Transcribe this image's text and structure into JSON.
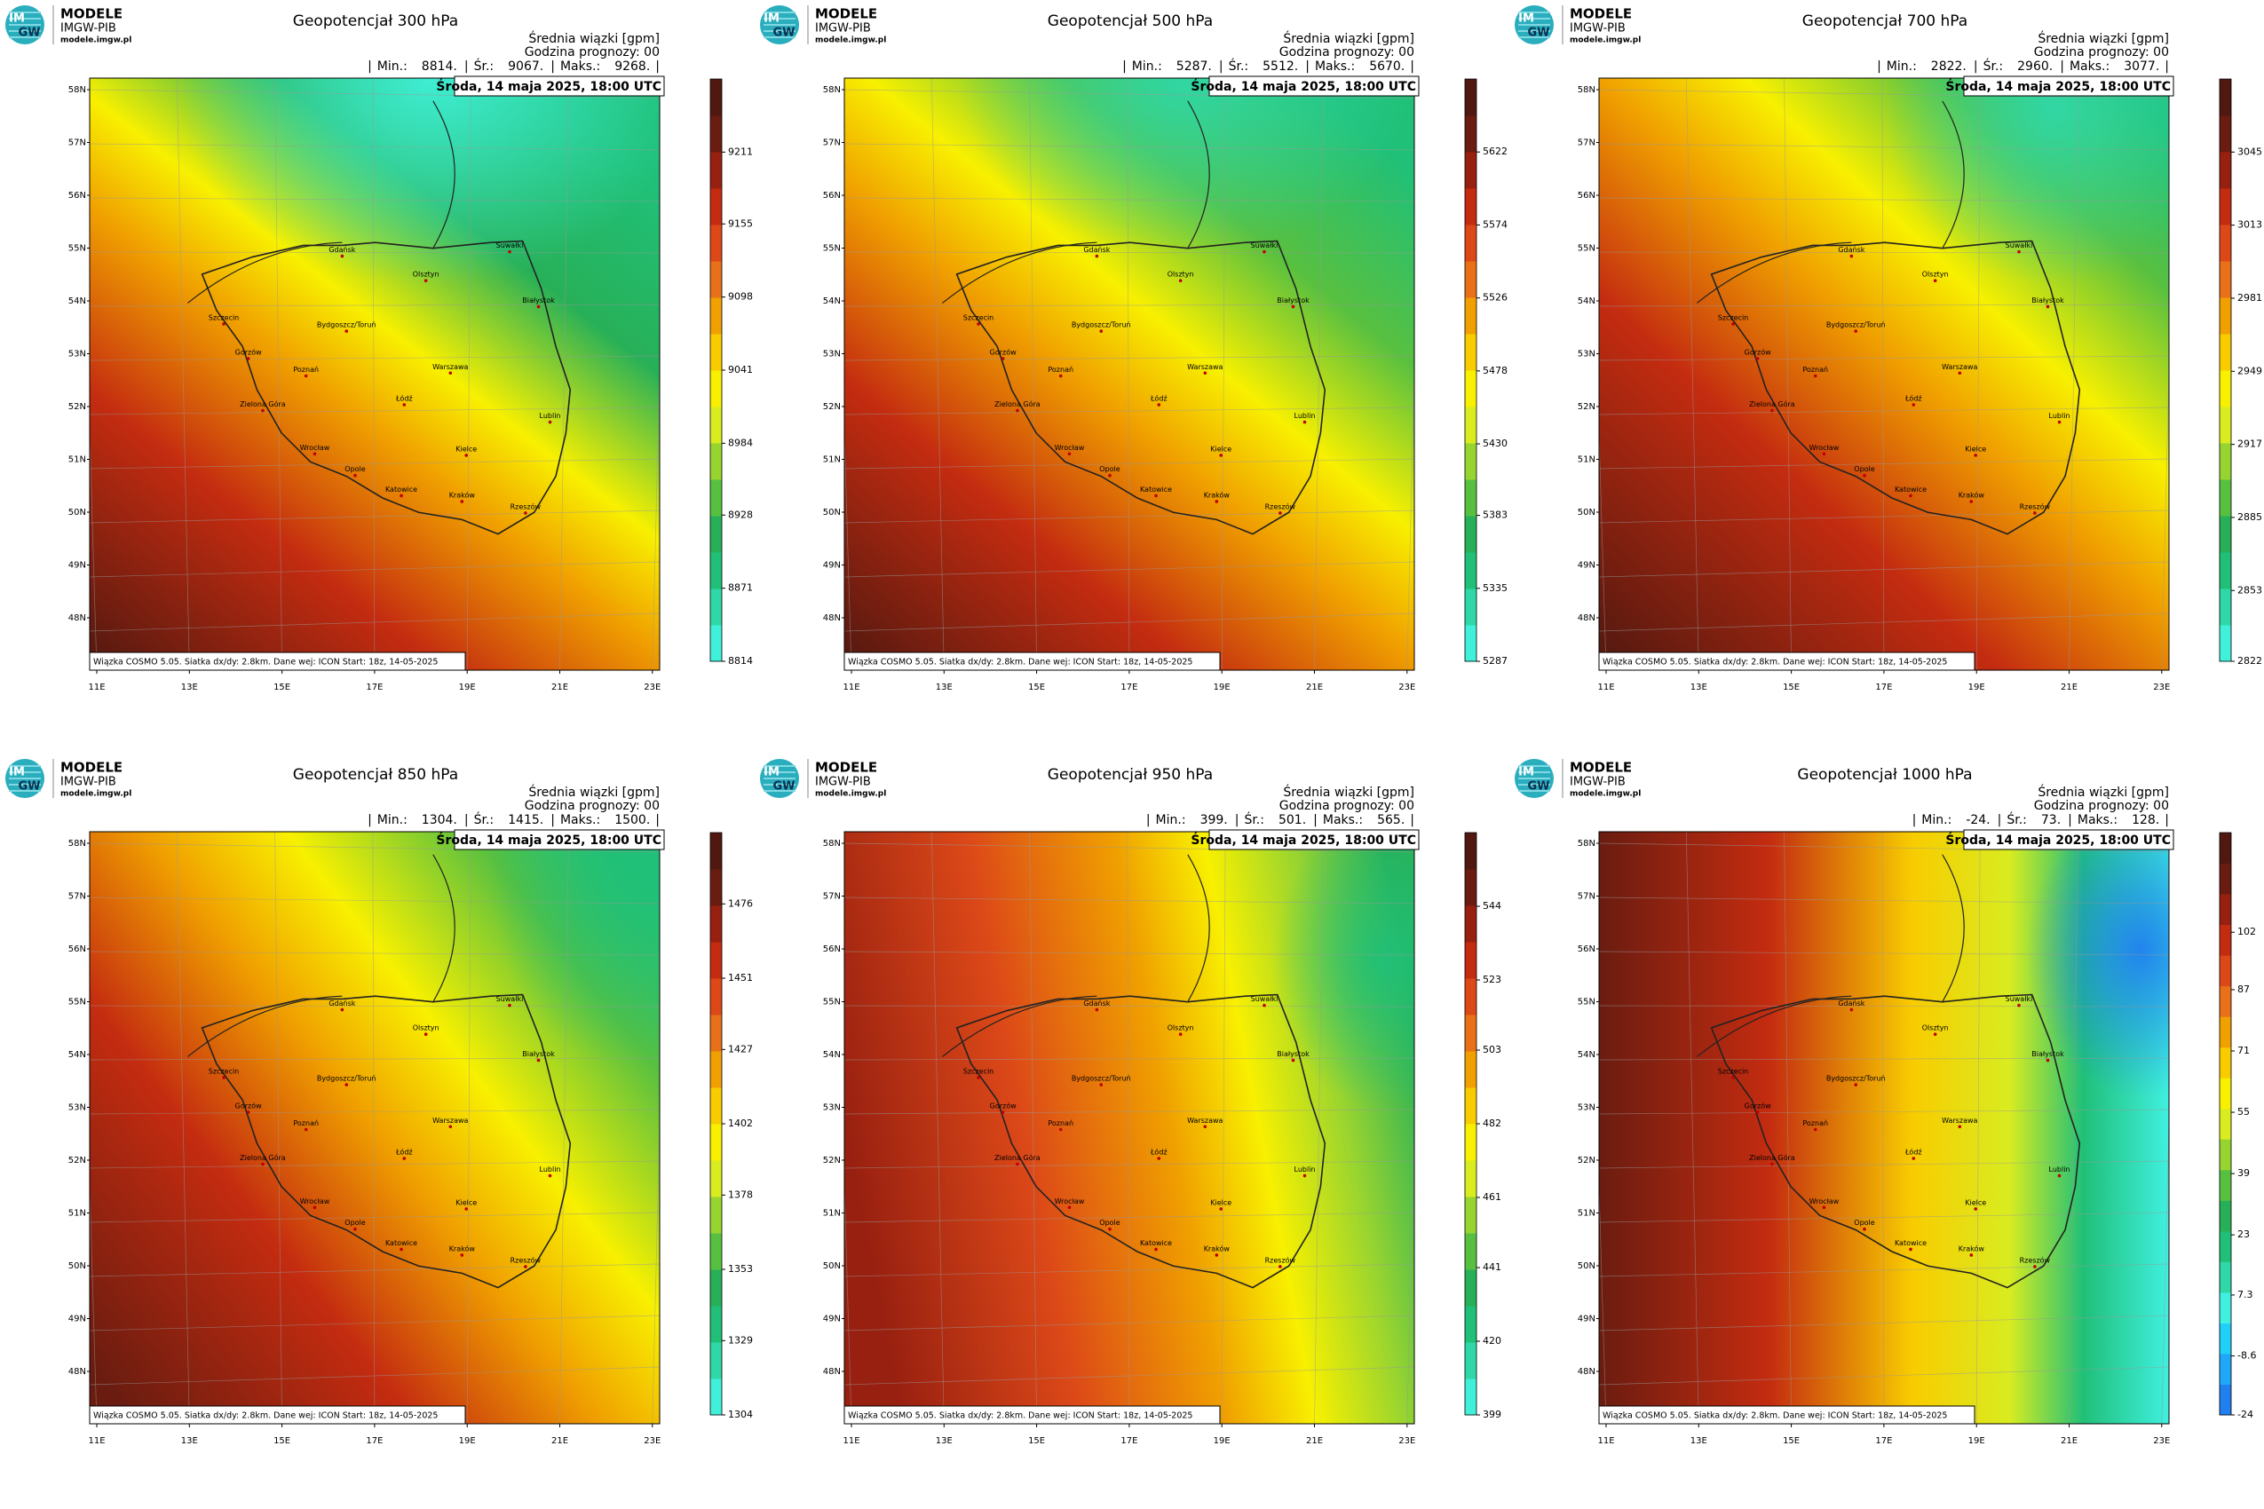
{
  "common": {
    "logo": {
      "mark_top": "IM",
      "mark_bottom": "GW",
      "name": "MODELE",
      "org": "IMGW-PIB",
      "url": "modele.imgw.pl"
    },
    "header_lines": [
      "Średnia wiązki [gpm]",
      "Godzina prognozy: 00"
    ],
    "separator": "|",
    "date": "Środa, 14 maja 2025, 18:00 UTC",
    "footer": "Wiązka COSMO 5.05. Siatka dx/dy: 2.8km. Dane wej: ICON Start: 18z, 14-05-2025",
    "lat_labels": [
      "58N",
      "57N",
      "56N",
      "55N",
      "54N",
      "53N",
      "52N",
      "51N",
      "50N",
      "49N",
      "48N"
    ],
    "lon_labels": [
      "11E",
      "13E",
      "15E",
      "17E",
      "19E",
      "21E",
      "23E"
    ],
    "cities": [
      "Gdańsk",
      "Olsztyn",
      "Suwałki",
      "Białystok",
      "Szczecin",
      "Bydgoszcz/Toruń",
      "Gorzów",
      "Poznań",
      "Warszawa",
      "Łódź",
      "Zielona Góra",
      "Lublin",
      "Wrocław",
      "Kielce",
      "Opole",
      "Katowice",
      "Kraków",
      "Rzeszów"
    ]
  },
  "panels": [
    {
      "title": "Geopotencjał 300 hPa",
      "stats": {
        "labels": [
          "Min.:",
          "Śr.:",
          "Maks.:"
        ],
        "values": [
          8814,
          9067,
          9268
        ],
        "value_labels": [
          "8814.",
          "9067.",
          "9268."
        ]
      },
      "colorbar": {
        "ylim": [
          8814,
          9268
        ],
        "ticks": [
          8814,
          8871,
          8928,
          8984,
          9041,
          9098,
          9155,
          9211
        ]
      }
    },
    {
      "title": "Geopotencjał 500 hPa",
      "stats": {
        "labels": [
          "Min.:",
          "Śr.:",
          "Maks.:"
        ],
        "values": [
          5287,
          5512,
          5670
        ],
        "value_labels": [
          "5287.",
          "5512.",
          "5670."
        ]
      },
      "colorbar": {
        "ylim": [
          5287,
          5670
        ],
        "ticks": [
          5287,
          5335,
          5383,
          5430,
          5478,
          5526,
          5574,
          5622
        ]
      }
    },
    {
      "title": "Geopotencjał 700 hPa",
      "stats": {
        "labels": [
          "Min.:",
          "Śr.:",
          "Maks.:"
        ],
        "values": [
          2822,
          2960,
          3077
        ],
        "value_labels": [
          "2822.",
          "2960.",
          "3077."
        ]
      },
      "colorbar": {
        "ylim": [
          2822,
          3077
        ],
        "ticks": [
          2822,
          2853,
          2885,
          2917,
          2949,
          2981,
          3013,
          3045
        ]
      }
    },
    {
      "title": "Geopotencjał 850 hPa",
      "stats": {
        "labels": [
          "Min.:",
          "Śr.:",
          "Maks.:"
        ],
        "values": [
          1304,
          1415,
          1500
        ],
        "value_labels": [
          "1304.",
          "1415.",
          "1500."
        ]
      },
      "colorbar": {
        "ylim": [
          1304,
          1500
        ],
        "ticks": [
          1304,
          1329,
          1353,
          1378,
          1402,
          1427,
          1451,
          1476
        ]
      }
    },
    {
      "title": "Geopotencjał 950 hPa",
      "stats": {
        "labels": [
          "Min.:",
          "Śr.:",
          "Maks.:"
        ],
        "values": [
          399,
          501,
          565
        ],
        "value_labels": [
          "399.",
          "501.",
          "565."
        ]
      },
      "colorbar": {
        "ylim": [
          399,
          565
        ],
        "ticks": [
          399,
          420,
          441,
          461,
          482,
          503,
          523,
          544
        ]
      }
    },
    {
      "title": "Geopotencjał 1000 hPa",
      "stats": {
        "labels": [
          "Min.:",
          "Śr.:",
          "Maks.:"
        ],
        "values": [
          -24,
          73,
          128
        ],
        "value_labels": [
          "-24.",
          "73.",
          "128."
        ]
      },
      "colorbar": {
        "ylim": [
          -24,
          128
        ],
        "ticks": [
          -24,
          -8.6,
          7.3,
          23,
          39,
          55,
          71,
          87,
          102
        ]
      }
    }
  ]
}
